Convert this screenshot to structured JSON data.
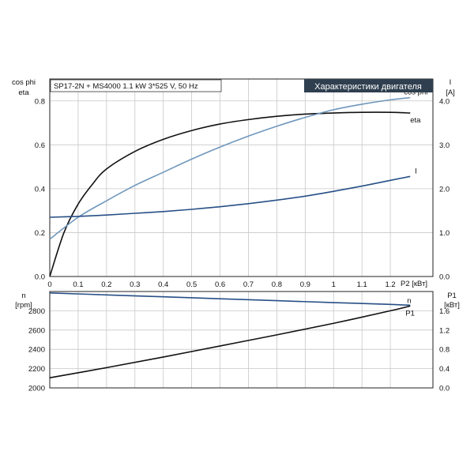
{
  "header": {
    "subtitle": "SP17-2N + MS4000   1.1 kW   3*525 V, 50 Hz",
    "title": "Характеристики двигателя"
  },
  "colors": {
    "eta": "#111111",
    "cos_phi": "#6f97bd",
    "current": "#274f86",
    "n": "#274f86",
    "p1": "#111111",
    "title_bg": "#2f3f4f"
  },
  "chart_data": [
    {
      "type": "line",
      "xlabel": "P2 [кВт]",
      "x_ticks": [
        "0",
        "0.1",
        "0.2",
        "0.3",
        "0.4",
        "0.5",
        "0.6",
        "0.7",
        "0.8",
        "0.9",
        "1",
        "1.1",
        "1.2"
      ],
      "xlim": [
        0,
        1.35
      ],
      "ylabel_left": [
        "cos phi",
        "eta"
      ],
      "ylim_left": [
        0,
        0.9
      ],
      "y_ticks_left": [
        "0.0",
        "0.2",
        "0.4",
        "0.6",
        "0.8"
      ],
      "ylabel_right": [
        "I",
        "[A]"
      ],
      "ylim_right": [
        0,
        4.5
      ],
      "y_ticks_right": [
        "0.0",
        "1.0",
        "2.0",
        "3.0",
        "4.0"
      ],
      "grid": true,
      "series": [
        {
          "name": "eta",
          "axis": "left",
          "x": [
            0,
            0.05,
            0.1,
            0.15,
            0.2,
            0.3,
            0.4,
            0.5,
            0.6,
            0.7,
            0.8,
            0.9,
            1.0,
            1.1,
            1.2,
            1.27
          ],
          "y": [
            0,
            0.2,
            0.33,
            0.42,
            0.49,
            0.57,
            0.625,
            0.665,
            0.695,
            0.715,
            0.73,
            0.74,
            0.745,
            0.748,
            0.748,
            0.745
          ]
        },
        {
          "name": "cos phi",
          "axis": "left",
          "x": [
            0,
            0.1,
            0.2,
            0.3,
            0.4,
            0.5,
            0.6,
            0.7,
            0.8,
            0.9,
            1.0,
            1.1,
            1.2,
            1.27
          ],
          "y": [
            0.17,
            0.27,
            0.345,
            0.415,
            0.475,
            0.535,
            0.59,
            0.64,
            0.685,
            0.725,
            0.76,
            0.785,
            0.805,
            0.815
          ]
        },
        {
          "name": "I",
          "axis": "right",
          "x": [
            0,
            0.1,
            0.2,
            0.3,
            0.4,
            0.5,
            0.6,
            0.7,
            0.8,
            0.9,
            1.0,
            1.1,
            1.2,
            1.27
          ],
          "y": [
            1.35,
            1.37,
            1.4,
            1.44,
            1.48,
            1.53,
            1.59,
            1.66,
            1.74,
            1.83,
            1.94,
            2.06,
            2.19,
            2.28
          ]
        }
      ]
    },
    {
      "type": "line",
      "xlim": [
        0,
        1.35
      ],
      "ylabel_left": [
        "n",
        "[rpm]"
      ],
      "ylim_left": [
        2000,
        3000
      ],
      "y_ticks_left": [
        "2000",
        "2200",
        "2400",
        "2600",
        "2800"
      ],
      "ylabel_right": [
        "P1",
        "[кВт]"
      ],
      "ylim_right": [
        0,
        2.0
      ],
      "y_ticks_right": [
        "0.0",
        "0.4",
        "0.8",
        "1.2",
        "1.6"
      ],
      "grid": true,
      "series": [
        {
          "name": "n",
          "axis": "left",
          "x": [
            0,
            0.2,
            0.4,
            0.6,
            0.8,
            1.0,
            1.2,
            1.27
          ],
          "y": [
            2985,
            2965,
            2945,
            2925,
            2905,
            2885,
            2866,
            2858
          ]
        },
        {
          "name": "P1",
          "axis": "right",
          "x": [
            0,
            0.2,
            0.4,
            0.6,
            0.8,
            1.0,
            1.2,
            1.27
          ],
          "y": [
            0.21,
            0.42,
            0.64,
            0.87,
            1.1,
            1.34,
            1.6,
            1.7
          ]
        }
      ]
    }
  ]
}
